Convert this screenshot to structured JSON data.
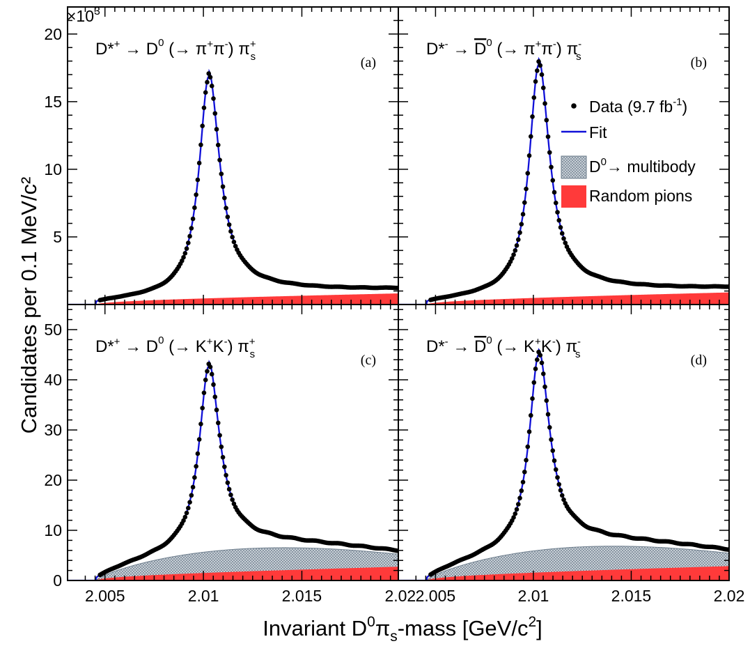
{
  "chart_data": {
    "type": "scatter",
    "xlabel_parts": [
      "Invariant D",
      "0",
      "π",
      "s",
      "-mass [GeV/c",
      "2",
      "]"
    ],
    "ylabel": "Candidates per 0.1 MeV/c²",
    "x_tick_labels": [
      "2.005",
      "2.01",
      "2.015",
      "2.02"
    ],
    "top_y_multiplier": {
      "base": "×10",
      "exp": "3"
    },
    "legend": {
      "data_label": "Data (9.7 fb",
      "data_label_exp": "-1",
      "data_label_end": ")",
      "fit_label": "Fit",
      "multibody_label_sup": "0",
      "multibody_label_pre": "D",
      "multibody_label_post": "→ multibody",
      "random_label": "Random pions"
    },
    "colors": {
      "data": "#000000",
      "fit": "#1010d8",
      "multibody": "#b9c3cc",
      "random": "#ff3a3a"
    },
    "panels": [
      {
        "id": "a",
        "tag": "(a)",
        "title": {
          "pre": "D*",
          "pre_sup": "+",
          "arrow": " → D",
          "d_sup": "0",
          "decay": " (→ π",
          "s1": "+",
          "mid": "π",
          "s2": "-",
          "close": ") π",
          "pis_sup": "+",
          "pis_sub": "s"
        },
        "x_range": [
          2.0031,
          2.0199
        ],
        "ylim": [
          0,
          22
        ],
        "y_unit_note": "×10³ candidates",
        "y_ticks": [
          5,
          10,
          15,
          20
        ],
        "peak": {
          "x": 2.01027,
          "height": 15.7
        },
        "random": {
          "scale": 0.72,
          "threshold": 2.00455
        },
        "multibody": {
          "amp": 0.0
        },
        "series": [
          {
            "name": "Data (9.7 fb-1)"
          }
        ]
      },
      {
        "id": "b",
        "tag": "(b)",
        "title": {
          "pre": "D*",
          "pre_sup": "-",
          "arrow": " → ",
          "dbar": "D",
          "d_sup": "0",
          "decay": " (→ π",
          "s1": "+",
          "mid": "π",
          "s2": "-",
          "close": ") π",
          "pis_sup": "-",
          "pis_sub": "s"
        },
        "x_range": [
          2.0031,
          2.02
        ],
        "ylim": [
          0,
          22
        ],
        "y_unit_note": "×10³ candidates",
        "y_ticks": [
          5,
          10,
          15,
          20
        ],
        "peak": {
          "x": 2.01027,
          "height": 16.5
        },
        "random": {
          "scale": 0.78,
          "threshold": 2.00455
        },
        "multibody": {
          "amp": 0.0
        },
        "series": [
          {
            "name": "Data (9.7 fb-1)"
          }
        ]
      },
      {
        "id": "c",
        "tag": "(c)",
        "title": {
          "pre": "D*",
          "pre_sup": "+",
          "arrow": " → D",
          "d_sup": "0",
          "decay": " (→ K",
          "s1": "+",
          "mid": "K",
          "s2": "-",
          "close": ") π",
          "pis_sup": "+",
          "pis_sub": "s"
        },
        "x_range": [
          2.0031,
          2.0199
        ],
        "ylim": [
          0,
          55
        ],
        "y_unit_note": "candidates",
        "y_ticks": [
          0,
          10,
          20,
          30,
          40,
          50
        ],
        "peak": {
          "x": 2.01027,
          "height": 35.5
        },
        "random": {
          "scale": 2.4,
          "threshold": 2.00455
        },
        "multibody": {
          "amp": 6.1,
          "center": 2.0112,
          "threshold": 2.00455,
          "endpoint": 2.0245
        },
        "series": [
          {
            "name": "Data (9.7 fb-1)"
          }
        ]
      },
      {
        "id": "d",
        "tag": "(d)",
        "title": {
          "pre": "D*",
          "pre_sup": "-",
          "arrow": " → ",
          "dbar": "D",
          "d_sup": "0",
          "decay": " (→ K",
          "s1": "+",
          "mid": "K",
          "s2": "-",
          "close": ") π",
          "pis_sup": "-",
          "pis_sub": "s"
        },
        "x_range": [
          2.0031,
          2.02
        ],
        "ylim": [
          0,
          55
        ],
        "y_unit_note": "candidates",
        "y_ticks": [
          0,
          10,
          20,
          30,
          40,
          50
        ],
        "peak": {
          "x": 2.01027,
          "height": 37.5
        },
        "random": {
          "scale": 2.5,
          "threshold": 2.00455
        },
        "multibody": {
          "amp": 6.4,
          "center": 2.0112,
          "threshold": 2.00455,
          "endpoint": 2.0245
        },
        "series": [
          {
            "name": "Data (9.7 fb-1)"
          }
        ]
      }
    ]
  }
}
